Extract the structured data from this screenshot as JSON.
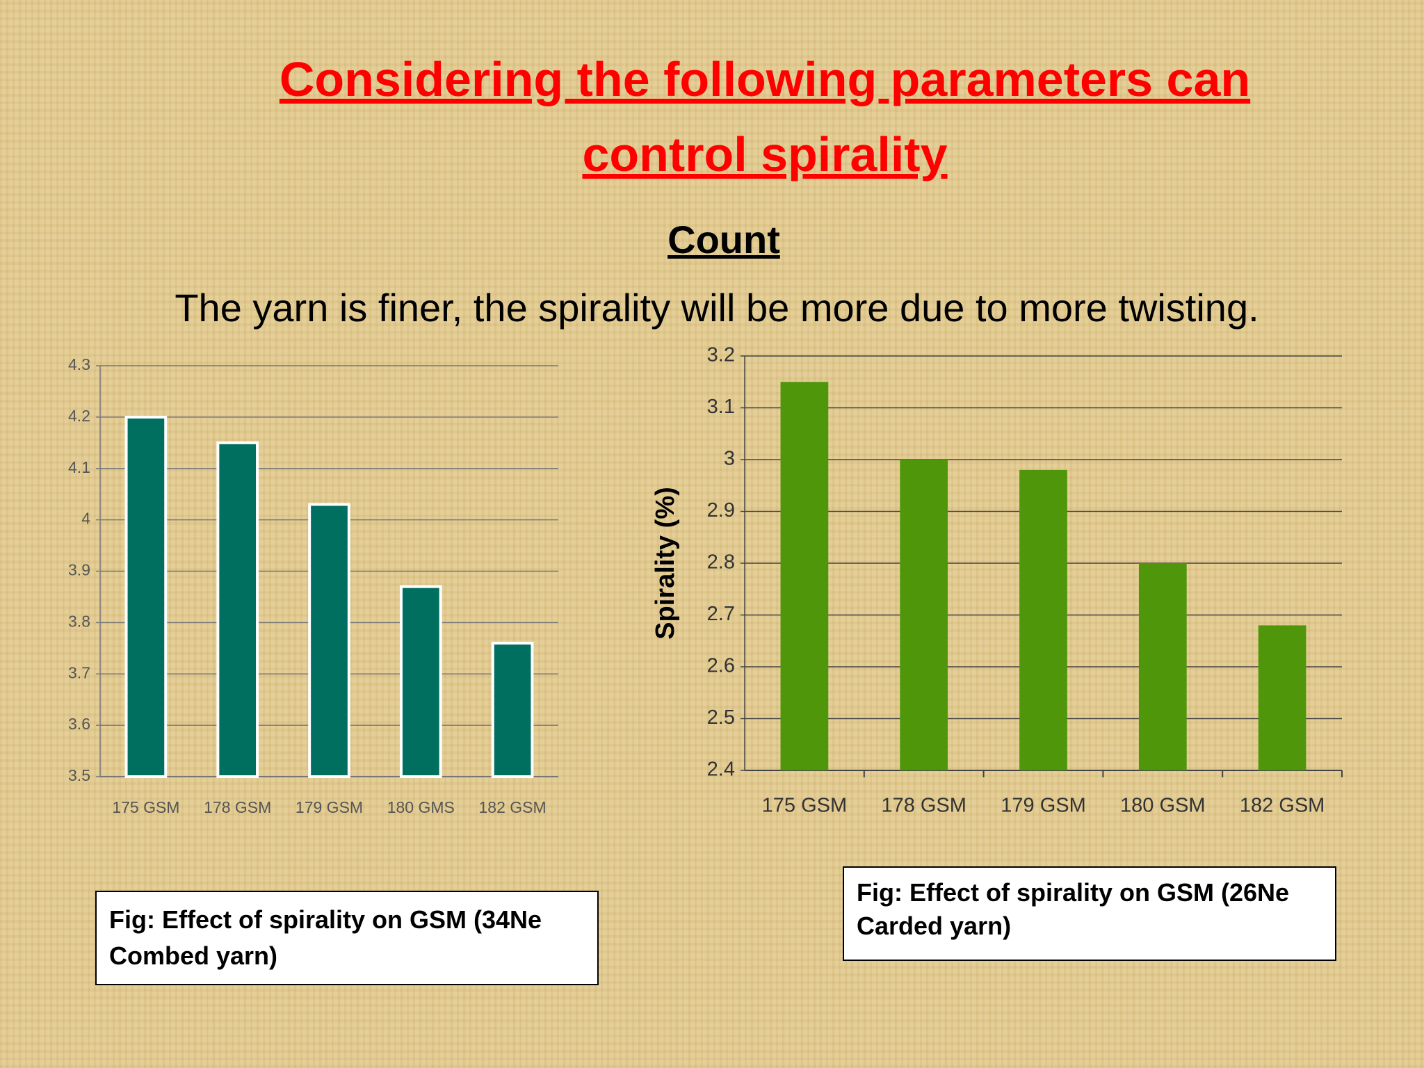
{
  "slide": {
    "title": "Considering the following parameters can control spirality",
    "subtitle": "Count",
    "text": "The yarn is finer, the spirality will be more due to more twisting."
  },
  "chart_data": [
    {
      "type": "bar",
      "categories": [
        "175 GSM",
        "178 GSM",
        "179 GSM",
        "180 GMS",
        "182 GSM"
      ],
      "values": [
        4.2,
        4.15,
        4.03,
        3.87,
        3.76
      ],
      "color": "#006f5f",
      "ylim": [
        3.5,
        4.3
      ],
      "yticks": [
        3.5,
        3.6,
        3.7,
        3.8,
        3.9,
        4,
        4.1,
        4.2,
        4.3
      ],
      "grid": true,
      "caption": "Fig: Effect of spirality on GSM (34Ne Combed yarn)"
    },
    {
      "type": "bar",
      "categories": [
        "175 GSM",
        "178 GSM",
        "179 GSM",
        "180 GSM",
        "182 GSM"
      ],
      "values": [
        3.15,
        3.0,
        2.98,
        2.8,
        2.68
      ],
      "color": "#4f960a",
      "ylim": [
        2.4,
        3.2
      ],
      "yticks": [
        2.4,
        2.5,
        2.6,
        2.7,
        2.8,
        2.9,
        3,
        3.1,
        3.2
      ],
      "grid": true,
      "y_label": "Spirality (%)",
      "caption": "Fig: Effect of spirality on GSM (26Ne Carded yarn)"
    }
  ]
}
